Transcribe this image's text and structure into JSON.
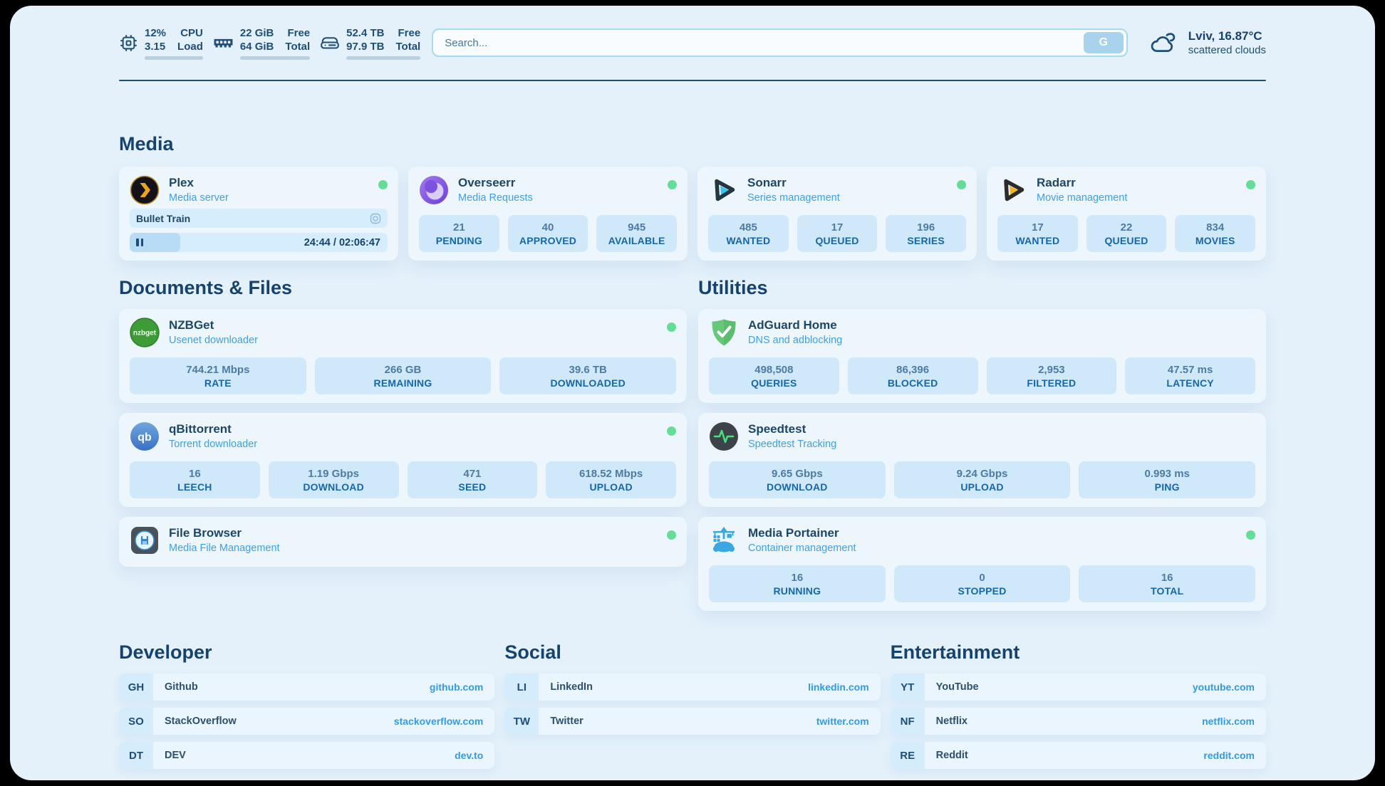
{
  "colors": {
    "accent_navy": "#1d4e79",
    "subtitle_blue": "#3fa0e8",
    "link_blue": "#2f9ce8",
    "status_green": "#64de96",
    "panel_bg": "#e4f1fb"
  },
  "topbar": {
    "monitors": [
      {
        "icon": "cpu-icon",
        "value_top": "12%",
        "value_bottom": "3.15",
        "label_top": "CPU",
        "label_bottom": "Load",
        "progress_pct": 12
      },
      {
        "icon": "ram-icon",
        "value_top": "22 GiB",
        "value_bottom": "64 GiB",
        "label_top": "Free",
        "label_bottom": "Total",
        "progress_pct": 66
      },
      {
        "icon": "disk-icon",
        "value_top": "52.4 TB",
        "value_bottom": "97.9 TB",
        "label_top": "Free",
        "label_bottom": "Total",
        "progress_pct": 46
      }
    ],
    "search": {
      "placeholder": "Search...",
      "button_label": "G"
    },
    "weather": {
      "icon": "cloud-icon",
      "location_temp": "Lviv, 16.87°C",
      "condition": "scattered clouds"
    }
  },
  "media": {
    "title": "Media",
    "plex": {
      "icon": "plex-icon",
      "title": "Plex",
      "subtitle": "Media server",
      "status": "online",
      "now_playing": "Bullet Train",
      "elapsed_total": "24:44 / 02:06:47",
      "progress_pct": 19.5
    },
    "overseerr": {
      "icon": "overseerr-icon",
      "title": "Overseerr",
      "subtitle": "Media Requests",
      "status": "online",
      "stats": [
        {
          "value": "21",
          "label": "PENDING"
        },
        {
          "value": "40",
          "label": "APPROVED"
        },
        {
          "value": "945",
          "label": "AVAILABLE"
        }
      ]
    },
    "sonarr": {
      "icon": "sonarr-icon",
      "title": "Sonarr",
      "subtitle": "Series management",
      "status": "online",
      "stats": [
        {
          "value": "485",
          "label": "WANTED"
        },
        {
          "value": "17",
          "label": "QUEUED"
        },
        {
          "value": "196",
          "label": "SERIES"
        }
      ]
    },
    "radarr": {
      "icon": "radarr-icon",
      "title": "Radarr",
      "subtitle": "Movie management",
      "status": "online",
      "stats": [
        {
          "value": "17",
          "label": "WANTED"
        },
        {
          "value": "22",
          "label": "QUEUED"
        },
        {
          "value": "834",
          "label": "MOVIES"
        }
      ]
    }
  },
  "documents": {
    "title": "Documents & Files",
    "nzbget": {
      "icon": "nzbget-icon",
      "title": "NZBGet",
      "subtitle": "Usenet downloader",
      "status": "online",
      "stats": [
        {
          "value": "744.21 Mbps",
          "label": "RATE"
        },
        {
          "value": "266 GB",
          "label": "REMAINING"
        },
        {
          "value": "39.6 TB",
          "label": "DOWNLOADED"
        }
      ]
    },
    "qbittorrent": {
      "icon": "qbittorrent-icon",
      "title": "qBittorrent",
      "subtitle": "Torrent downloader",
      "status": "online",
      "stats": [
        {
          "value": "16",
          "label": "LEECH"
        },
        {
          "value": "1.19 Gbps",
          "label": "DOWNLOAD"
        },
        {
          "value": "471",
          "label": "SEED"
        },
        {
          "value": "618.52 Mbps",
          "label": "UPLOAD"
        }
      ]
    },
    "filebrowser": {
      "icon": "filebrowser-icon",
      "title": "File Browser",
      "subtitle": "Media File Management",
      "status": "online"
    }
  },
  "utilities": {
    "title": "Utilities",
    "adguard": {
      "icon": "adguard-icon",
      "title": "AdGuard Home",
      "subtitle": "DNS and adblocking",
      "stats": [
        {
          "value": "498,508",
          "label": "QUERIES"
        },
        {
          "value": "86,396",
          "label": "BLOCKED"
        },
        {
          "value": "2,953",
          "label": "FILTERED"
        },
        {
          "value": "47.57 ms",
          "label": "LATENCY"
        }
      ]
    },
    "speedtest": {
      "icon": "speedtest-icon",
      "title": "Speedtest",
      "subtitle": "Speedtest Tracking",
      "stats": [
        {
          "value": "9.65 Gbps",
          "label": "DOWNLOAD"
        },
        {
          "value": "9.24 Gbps",
          "label": "UPLOAD"
        },
        {
          "value": "0.993 ms",
          "label": "PING"
        }
      ]
    },
    "portainer": {
      "icon": "portainer-icon",
      "title": "Media Portainer",
      "subtitle": "Container management",
      "status": "online",
      "stats": [
        {
          "value": "16",
          "label": "RUNNING"
        },
        {
          "value": "0",
          "label": "STOPPED"
        },
        {
          "value": "16",
          "label": "TOTAL"
        }
      ]
    }
  },
  "links": {
    "developer": {
      "title": "Developer",
      "items": [
        {
          "abbr": "GH",
          "name": "Github",
          "url": "github.com"
        },
        {
          "abbr": "SO",
          "name": "StackOverflow",
          "url": "stackoverflow.com"
        },
        {
          "abbr": "DT",
          "name": "DEV",
          "url": "dev.to"
        }
      ]
    },
    "social": {
      "title": "Social",
      "items": [
        {
          "abbr": "LI",
          "name": "LinkedIn",
          "url": "linkedin.com"
        },
        {
          "abbr": "TW",
          "name": "Twitter",
          "url": "twitter.com"
        }
      ]
    },
    "entertainment": {
      "title": "Entertainment",
      "items": [
        {
          "abbr": "YT",
          "name": "YouTube",
          "url": "youtube.com"
        },
        {
          "abbr": "NF",
          "name": "Netflix",
          "url": "netflix.com"
        },
        {
          "abbr": "RE",
          "name": "Reddit",
          "url": "reddit.com"
        }
      ]
    }
  }
}
